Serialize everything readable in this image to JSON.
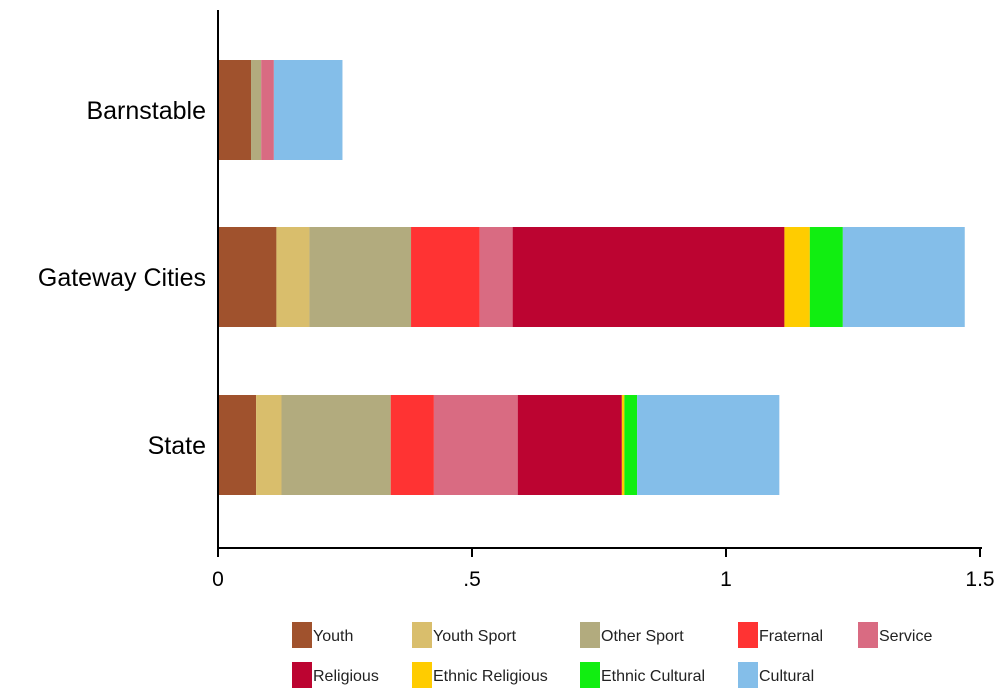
{
  "chart_data": {
    "type": "bar",
    "orientation": "horizontal",
    "stacked": true,
    "categories": [
      "Barnstable",
      "Gateway Cities",
      "State"
    ],
    "series": [
      {
        "name": "Youth",
        "color": "#A0522D",
        "values": [
          0.065,
          0.115,
          0.075
        ]
      },
      {
        "name": "Youth Sport",
        "color": "#D9BE6C",
        "values": [
          0.0,
          0.065,
          0.05
        ]
      },
      {
        "name": "Other Sport",
        "color": "#B2AB7E",
        "values": [
          0.02,
          0.2,
          0.215
        ]
      },
      {
        "name": "Fraternal",
        "color": "#FF3333",
        "values": [
          0.0,
          0.135,
          0.085
        ]
      },
      {
        "name": "Service",
        "color": "#D96B82",
        "values": [
          0.025,
          0.065,
          0.165
        ]
      },
      {
        "name": "Religious",
        "color": "#BC0431",
        "values": [
          0.0,
          0.535,
          0.205
        ]
      },
      {
        "name": "Ethnic Religious",
        "color": "#FFCC00",
        "values": [
          0.0,
          0.05,
          0.005
        ]
      },
      {
        "name": "Ethnic Cultural",
        "color": "#11EE11",
        "values": [
          0.0,
          0.065,
          0.025
        ]
      },
      {
        "name": "Cultural",
        "color": "#84BEE9",
        "values": [
          0.135,
          0.24,
          0.28
        ]
      }
    ],
    "xlim": [
      0,
      1.5
    ],
    "x_ticks": [
      {
        "value": 0,
        "label": "0"
      },
      {
        "value": 0.5,
        "label": ".5"
      },
      {
        "value": 1,
        "label": "1"
      },
      {
        "value": 1.5,
        "label": "1.5"
      }
    ],
    "grid": false,
    "legend_position": "bottom",
    "legend_columns": 5
  }
}
